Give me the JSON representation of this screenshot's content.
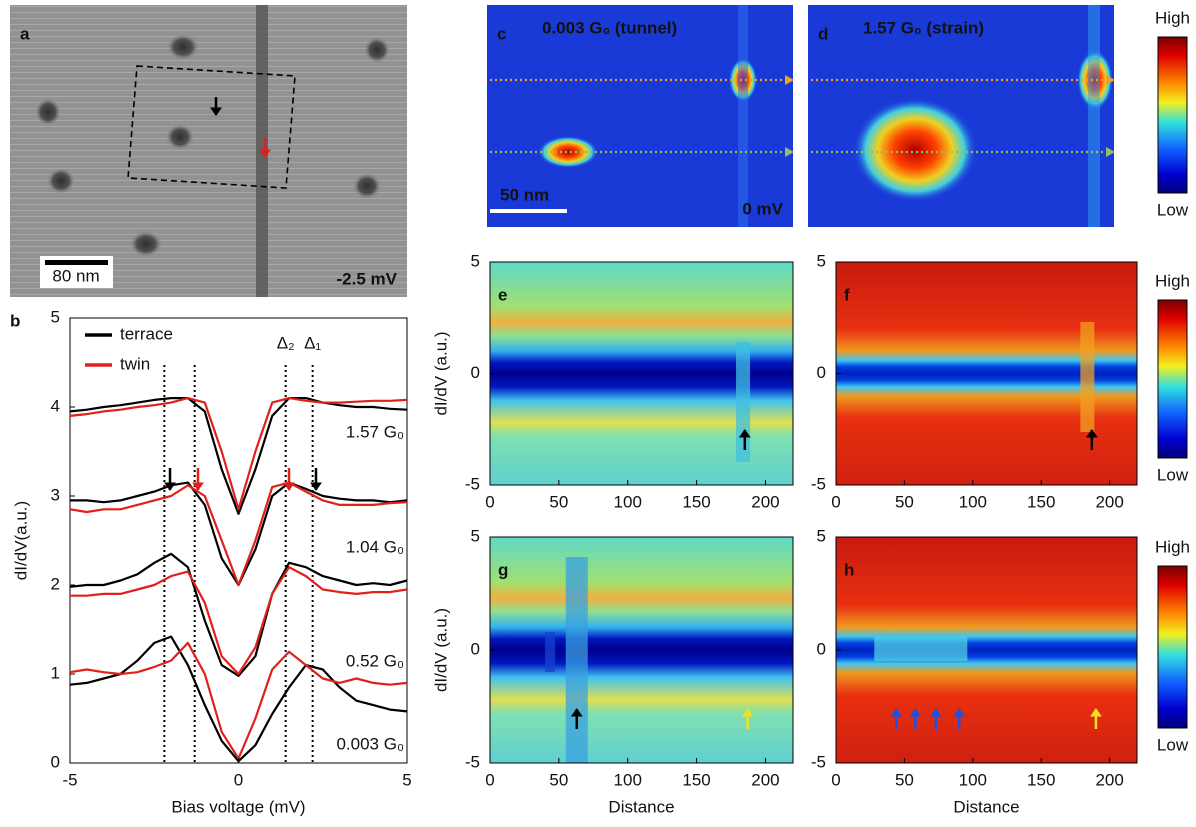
{
  "chart_data": [
    {
      "type": "image",
      "label": "a",
      "scale_bar": "80 nm",
      "annotation": "-2.5 mV"
    },
    {
      "type": "line",
      "label": "b",
      "xlabel": "Bias voltage (mV)",
      "ylabel": "dI/dV(a.u.)",
      "xlim": [
        -5,
        5
      ],
      "ylim": [
        0,
        5
      ],
      "xticks": [
        -5,
        0,
        5
      ],
      "yticks": [
        0,
        1,
        2,
        3,
        4,
        5
      ],
      "x": [
        -5,
        -4.5,
        -4,
        -3.5,
        -3,
        -2.5,
        -2,
        -1.5,
        -1,
        -0.5,
        0,
        0.5,
        1,
        1.5,
        2,
        2.5,
        3,
        3.5,
        4,
        4.5,
        5
      ],
      "curve_labels": [
        "1.57 G₀",
        "1.04 G₀",
        "0.52 G₀",
        "0.003 G₀"
      ],
      "gap_lines": [
        {
          "value": -2.2
        },
        {
          "value": -1.3
        },
        {
          "value": 1.4,
          "label": "Δ₂"
        },
        {
          "value": 2.2,
          "label": "Δ₁"
        }
      ],
      "series": [
        {
          "name": "terrace",
          "color": "#000000",
          "values": [
            [
              3.95,
              3.97,
              4.0,
              4.02,
              4.05,
              4.08,
              4.1,
              4.1,
              3.95,
              3.3,
              2.8,
              3.3,
              3.9,
              4.1,
              4.1,
              4.05,
              4.02,
              4.0,
              4.0,
              3.98,
              3.97
            ],
            [
              2.95,
              2.95,
              2.93,
              2.95,
              3.0,
              3.05,
              3.12,
              3.15,
              2.9,
              2.3,
              2.0,
              2.4,
              3.0,
              3.15,
              3.08,
              3.0,
              2.97,
              2.95,
              2.95,
              2.93,
              2.95
            ],
            [
              1.98,
              2.0,
              2.0,
              2.05,
              2.12,
              2.25,
              2.35,
              2.2,
              1.6,
              1.1,
              0.98,
              1.2,
              1.9,
              2.25,
              2.2,
              2.1,
              2.05,
              2.0,
              2.02,
              2.0,
              2.05
            ],
            [
              0.88,
              0.9,
              0.95,
              1.0,
              1.15,
              1.35,
              1.42,
              1.1,
              0.65,
              0.25,
              0.02,
              0.2,
              0.55,
              0.85,
              1.1,
              1.05,
              0.85,
              0.7,
              0.65,
              0.6,
              0.58
            ]
          ]
        },
        {
          "name": "twin",
          "color": "#e0201a",
          "values": [
            [
              3.9,
              3.92,
              3.95,
              3.97,
              4.0,
              4.02,
              4.05,
              4.1,
              4.05,
              3.5,
              2.85,
              3.5,
              4.05,
              4.1,
              4.07,
              4.05,
              4.05,
              4.06,
              4.07,
              4.07,
              4.08
            ],
            [
              2.85,
              2.82,
              2.85,
              2.85,
              2.9,
              2.95,
              3.0,
              3.12,
              3.0,
              2.5,
              2.0,
              2.5,
              3.1,
              3.15,
              3.05,
              2.95,
              2.9,
              2.9,
              2.9,
              2.92,
              2.93
            ],
            [
              1.88,
              1.88,
              1.9,
              1.9,
              1.95,
              2.0,
              2.1,
              2.15,
              1.8,
              1.2,
              1.0,
              1.3,
              1.9,
              2.2,
              2.1,
              1.95,
              1.92,
              1.9,
              1.92,
              1.92,
              1.95
            ],
            [
              1.02,
              1.05,
              1.02,
              1.0,
              1.02,
              1.08,
              1.15,
              1.35,
              1.0,
              0.35,
              0.05,
              0.5,
              1.05,
              1.25,
              1.1,
              0.95,
              0.9,
              0.95,
              0.9,
              0.88,
              0.9
            ]
          ]
        }
      ]
    },
    {
      "type": "image",
      "label": "c",
      "title": "0.003 G₀ (tunnel)",
      "scale_bar": "50 nm",
      "annotation": "0 mV"
    },
    {
      "type": "image",
      "label": "d",
      "title": "1.57 G₀ (strain)",
      "colorbar": {
        "high": "High",
        "low": "Low"
      }
    },
    {
      "type": "heatmap",
      "label": "e",
      "ylabel": "dI/dV (a.u.)",
      "xlim": [
        0,
        220
      ],
      "xticks": [
        0,
        50,
        100,
        150,
        200
      ],
      "ylim": [
        -5,
        5
      ],
      "yticks": [
        -5,
        0,
        5
      ]
    },
    {
      "type": "heatmap",
      "label": "f",
      "xlim": [
        0,
        220
      ],
      "xticks": [
        0,
        50,
        100,
        150,
        200
      ],
      "ylim": [
        -5,
        5
      ],
      "yticks": [
        -5,
        0,
        5
      ],
      "colorbar": {
        "high": "High",
        "low": "Low"
      }
    },
    {
      "type": "heatmap",
      "label": "g",
      "ylabel": "dI/dV (a.u.)",
      "xlabel": "Distance",
      "xlim": [
        0,
        220
      ],
      "xticks": [
        0,
        50,
        100,
        150,
        200
      ],
      "ylim": [
        -5,
        5
      ],
      "yticks": [
        -5,
        0,
        5
      ]
    },
    {
      "type": "heatmap",
      "label": "h",
      "xlabel": "Distance",
      "xlim": [
        0,
        220
      ],
      "xticks": [
        0,
        50,
        100,
        150,
        200
      ],
      "ylim": [
        -5,
        5
      ],
      "yticks": [
        -5,
        0,
        5
      ],
      "colorbar": {
        "high": "High",
        "low": "Low"
      }
    }
  ]
}
